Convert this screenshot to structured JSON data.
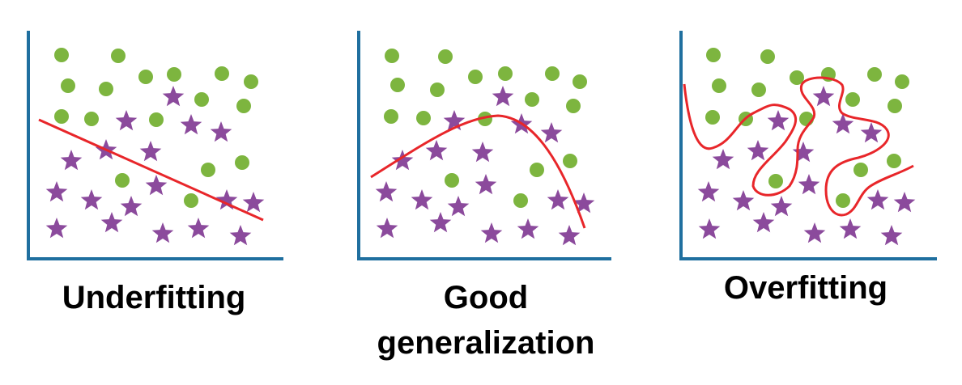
{
  "colors": {
    "axis": "#1f6f9f",
    "circle": "#7db53f",
    "star": "#8b4a9c",
    "curve": "#e8262a"
  },
  "icons": {
    "circle": "circle-icon",
    "star": "star-icon"
  },
  "panels": [
    {
      "id": "underfitting",
      "caption": "Underfitting",
      "fit": "line"
    },
    {
      "id": "good",
      "caption_line1": "Good",
      "caption_line2": "generalization",
      "fit": "curve"
    },
    {
      "id": "overfitting",
      "caption": "Overfitting",
      "fit": "wiggly-boundary"
    }
  ]
}
